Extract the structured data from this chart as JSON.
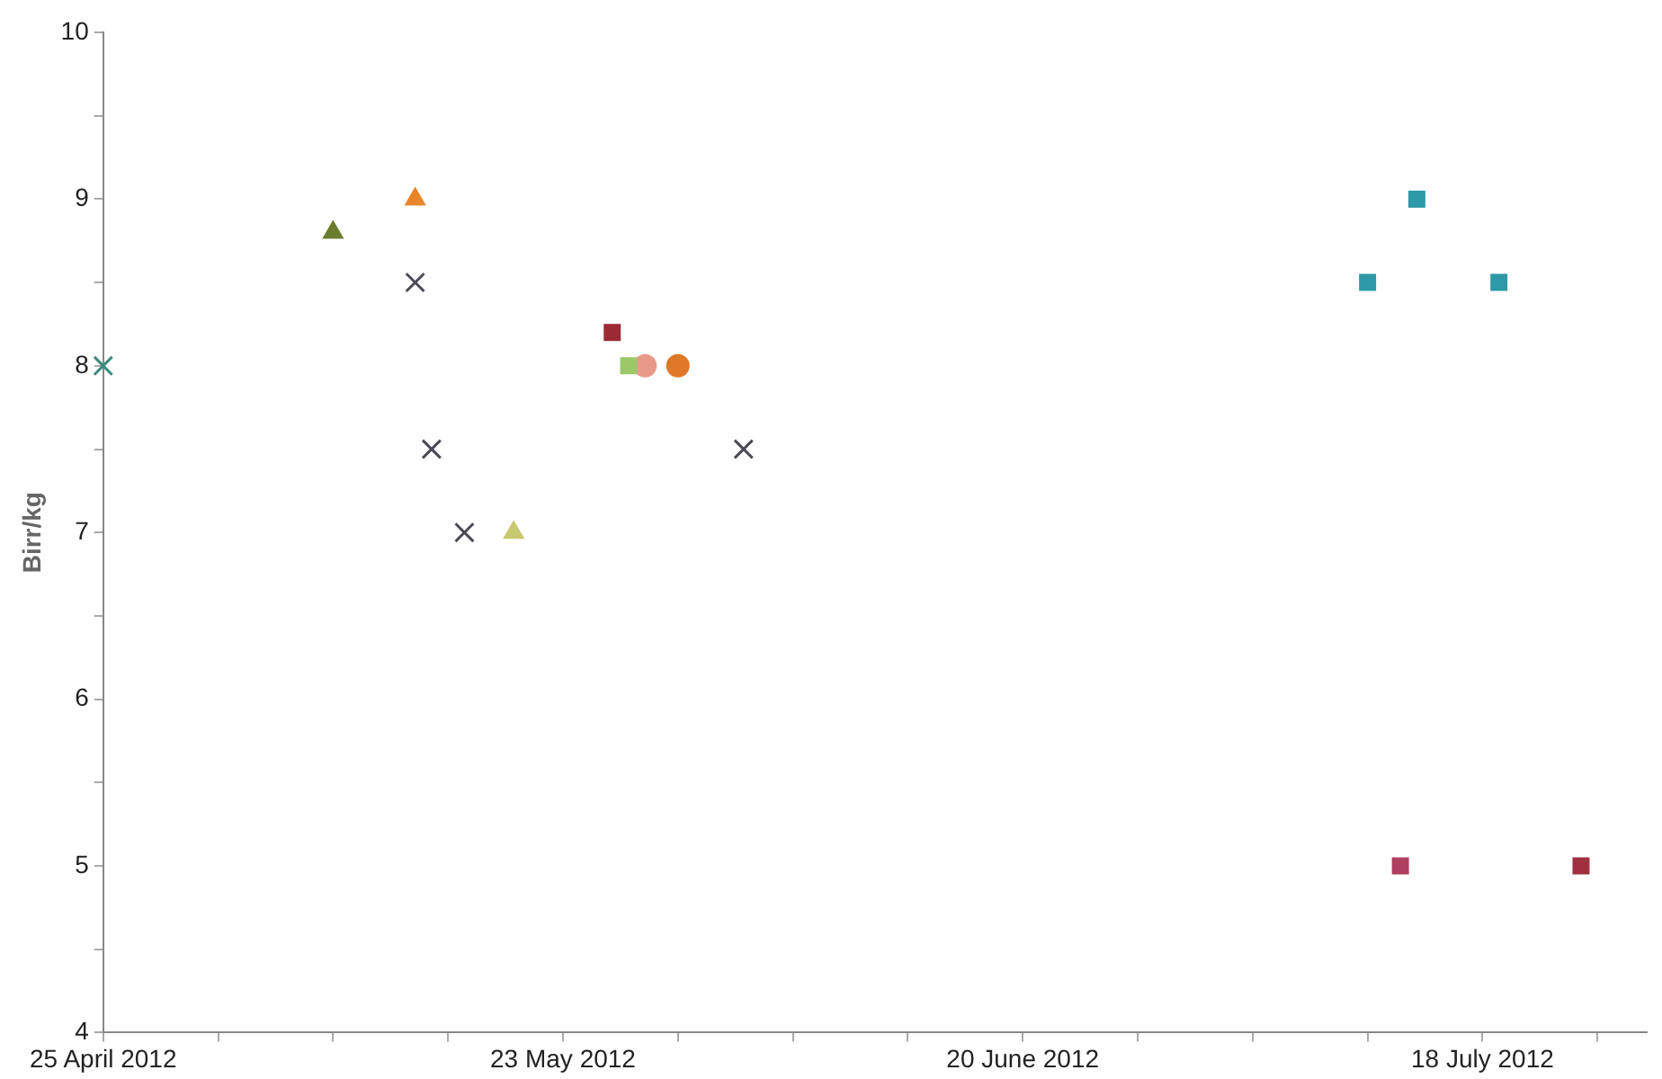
{
  "chart_data": {
    "type": "scatter",
    "ylabel": "Birr/kg",
    "grid": false,
    "legend": false,
    "xlim": [
      "2012-04-25",
      "2012-07-28"
    ],
    "xticks": [
      {
        "value": "2012-04-25",
        "label": "25 April 2012"
      },
      {
        "value": "2012-05-02",
        "label": null
      },
      {
        "value": "2012-05-09",
        "label": null
      },
      {
        "value": "2012-05-16",
        "label": null
      },
      {
        "value": "2012-05-23",
        "label": "23 May 2012"
      },
      {
        "value": "2012-05-30",
        "label": null
      },
      {
        "value": "2012-06-06",
        "label": null
      },
      {
        "value": "2012-06-13",
        "label": null
      },
      {
        "value": "2012-06-20",
        "label": "20 June 2012"
      },
      {
        "value": "2012-06-27",
        "label": null
      },
      {
        "value": "2012-07-04",
        "label": null
      },
      {
        "value": "2012-07-11",
        "label": null
      },
      {
        "value": "2012-07-18",
        "label": "18 July 2012"
      },
      {
        "value": "2012-07-25",
        "label": null
      }
    ],
    "ylim": [
      4,
      10
    ],
    "yticks": [
      4,
      {
        "value": 4.5,
        "label": null
      },
      5,
      {
        "value": 5.5,
        "label": null
      },
      6,
      {
        "value": 6.5,
        "label": null
      },
      7,
      {
        "value": 7.5,
        "label": null
      },
      8,
      {
        "value": 8.5,
        "label": null
      },
      9,
      {
        "value": 9.5,
        "label": null
      },
      10
    ],
    "series": [
      {
        "color": "#3a8a7a",
        "marker": "cross",
        "x": [
          "2012-04-25"
        ],
        "values": [
          8
        ]
      },
      {
        "color": "#6b7d2e",
        "marker": "triangle",
        "x": [
          "2012-05-09"
        ],
        "values": [
          8.8
        ]
      },
      {
        "color": "#e8842a",
        "marker": "triangle",
        "x": [
          "2012-05-14"
        ],
        "values": [
          9
        ]
      },
      {
        "color": "#4a4a55",
        "marker": "cross",
        "x": [
          "2012-05-14",
          "2012-05-15",
          "2012-05-17",
          "2012-06-03"
        ],
        "values": [
          8.5,
          7.5,
          7,
          7.5
        ]
      },
      {
        "color": "#c8c870",
        "marker": "triangle",
        "x": [
          "2012-05-20"
        ],
        "values": [
          7
        ]
      },
      {
        "color": "#9b2a35",
        "marker": "square",
        "x": [
          "2012-05-26"
        ],
        "values": [
          8.2
        ]
      },
      {
        "color": "#9cc86a",
        "marker": "square",
        "x": [
          "2012-05-27"
        ],
        "values": [
          8
        ]
      },
      {
        "color": "#e89a8a",
        "marker": "circle",
        "x": [
          "2012-05-28"
        ],
        "values": [
          8
        ]
      },
      {
        "color": "#e0782a",
        "marker": "circle",
        "x": [
          "2012-05-30"
        ],
        "values": [
          8
        ]
      },
      {
        "color": "#2e9aa8",
        "marker": "square",
        "x": [
          "2012-07-11",
          "2012-07-14",
          "2012-07-19"
        ],
        "values": [
          8.5,
          9,
          8.5
        ]
      },
      {
        "color": "#b04060",
        "marker": "square",
        "x": [
          "2012-07-13"
        ],
        "values": [
          5
        ]
      },
      {
        "color": "#a03040",
        "marker": "square",
        "x": [
          "2012-07-24"
        ],
        "values": [
          5
        ]
      }
    ]
  }
}
